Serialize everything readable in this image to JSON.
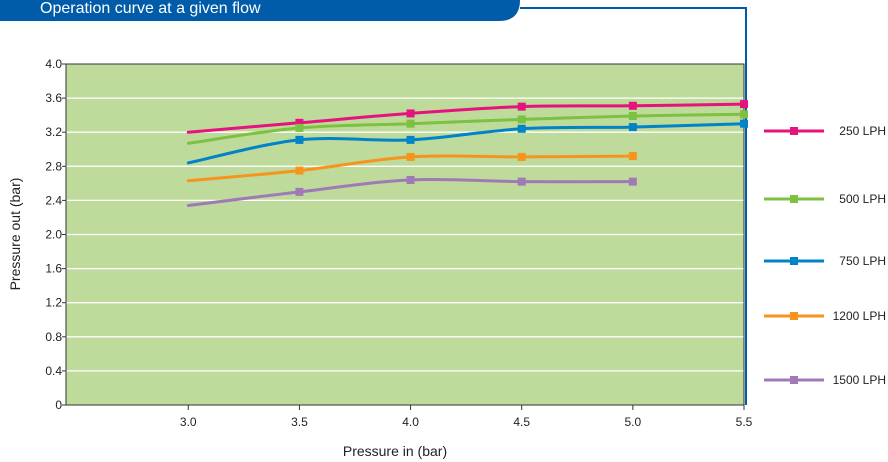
{
  "chart_data": {
    "type": "line",
    "title": "Operation curve at a given flow",
    "xlabel": "Pressure in (bar)",
    "ylabel": "Pressure out (bar)",
    "xlim": [
      2.45,
      5.5
    ],
    "ylim": [
      0,
      4.0
    ],
    "x_ticks": [
      "3.0",
      "3.5",
      "4.0",
      "4.5",
      "5.0",
      "5.5"
    ],
    "y_ticks": [
      "0",
      "0.4",
      "0.8",
      "1.2",
      "1.6",
      "2.0",
      "2.4",
      "2.8",
      "3.2",
      "3.6",
      "4.0"
    ],
    "grid": true,
    "legend_position": "right",
    "colors": {
      "plot_background": "#bedb9b",
      "banner": "#005ca9"
    },
    "series": [
      {
        "name": "250 LPH",
        "color": "#e6127e",
        "points": [
          [
            3.0,
            3.2
          ],
          [
            3.5,
            3.31
          ],
          [
            4.0,
            3.42
          ],
          [
            4.5,
            3.5
          ],
          [
            5.0,
            3.51
          ],
          [
            5.5,
            3.53
          ]
        ],
        "markers": [
          [
            3.5,
            3.31
          ],
          [
            4.0,
            3.42
          ],
          [
            4.5,
            3.5
          ],
          [
            5.0,
            3.51
          ],
          [
            5.5,
            3.53
          ]
        ]
      },
      {
        "name": "500 LPH",
        "color": "#7dc142",
        "points": [
          [
            3.0,
            3.07
          ],
          [
            3.5,
            3.25
          ],
          [
            4.0,
            3.3
          ],
          [
            4.5,
            3.35
          ],
          [
            5.0,
            3.39
          ],
          [
            5.5,
            3.41
          ]
        ],
        "markers": [
          [
            3.5,
            3.25
          ],
          [
            4.0,
            3.3
          ],
          [
            4.5,
            3.35
          ],
          [
            5.0,
            3.39
          ],
          [
            5.5,
            3.41
          ]
        ]
      },
      {
        "name": "750 LPH",
        "color": "#0083c9",
        "points": [
          [
            3.0,
            2.84
          ],
          [
            3.5,
            3.11
          ],
          [
            4.0,
            3.11
          ],
          [
            4.5,
            3.24
          ],
          [
            5.0,
            3.26
          ],
          [
            5.5,
            3.3
          ]
        ],
        "markers": [
          [
            3.5,
            3.11
          ],
          [
            4.0,
            3.11
          ],
          [
            4.5,
            3.24
          ],
          [
            5.0,
            3.26
          ],
          [
            5.5,
            3.3
          ]
        ]
      },
      {
        "name": "1200 LPH",
        "color": "#f7941d",
        "points": [
          [
            3.0,
            2.63
          ],
          [
            3.5,
            2.75
          ],
          [
            4.0,
            2.91
          ],
          [
            4.5,
            2.91
          ],
          [
            5.0,
            2.92
          ]
        ],
        "markers": [
          [
            3.5,
            2.75
          ],
          [
            4.0,
            2.91
          ],
          [
            4.5,
            2.91
          ],
          [
            5.0,
            2.92
          ]
        ]
      },
      {
        "name": "1500 LPH",
        "color": "#a079b7",
        "points": [
          [
            3.0,
            2.34
          ],
          [
            3.5,
            2.5
          ],
          [
            4.0,
            2.64
          ],
          [
            4.5,
            2.62
          ],
          [
            5.0,
            2.62
          ]
        ],
        "markers": [
          [
            3.5,
            2.5
          ],
          [
            4.0,
            2.64
          ],
          [
            4.5,
            2.62
          ],
          [
            5.0,
            2.62
          ]
        ]
      }
    ]
  }
}
